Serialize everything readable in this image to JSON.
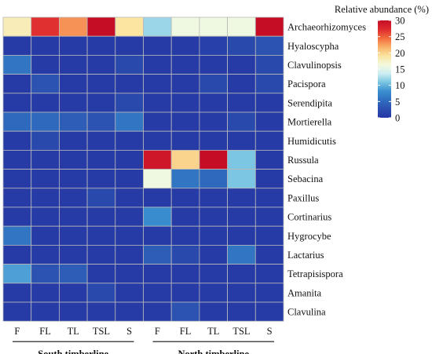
{
  "chart_data": {
    "type": "heatmap",
    "legend_title": "Relative abundance (%)",
    "colorbar": {
      "min": 0,
      "max": 30,
      "ticks": [
        0,
        5,
        10,
        15,
        20,
        25,
        30
      ],
      "colors": [
        "#2637a5",
        "#2c4fb0",
        "#2f6ec0",
        "#3a8fd0",
        "#79c5e2",
        "#cdeef2",
        "#f4f9de",
        "#fbe49e",
        "#f9b169",
        "#f26a3c",
        "#de2a2e",
        "#c50e26"
      ]
    },
    "columns": [
      "F",
      "FL",
      "TL",
      "TSL",
      "S",
      "F",
      "FL",
      "TL",
      "TSL",
      "S"
    ],
    "groups": [
      {
        "label": "South timberline",
        "span": [
          0,
          4
        ]
      },
      {
        "label": "North timberline",
        "span": [
          5,
          9
        ]
      }
    ],
    "rows": [
      "Archaeorhizomyces",
      "Hyaloscypha",
      "Clavulinopsis",
      "Pacispora",
      "Serendipita",
      "Mortierella",
      "Humidicutis",
      "Russula",
      "Sebacina",
      "Paxillus",
      "Cortinarius",
      "Hygrocybe",
      "Lactarius",
      "Tetrapisispora",
      "Amanita",
      "Clavulina"
    ],
    "values": [
      [
        18,
        27,
        23,
        30,
        19,
        12,
        16,
        16,
        16,
        30
      ],
      [
        0.5,
        0.5,
        0.5,
        0.5,
        0.5,
        0.5,
        0.5,
        1,
        2,
        3
      ],
      [
        6,
        0.5,
        0.5,
        0.5,
        2,
        0.5,
        0.5,
        0.5,
        0.5,
        2
      ],
      [
        0.5,
        3,
        0.5,
        0.5,
        0.5,
        0.5,
        0.5,
        2,
        0.5,
        2
      ],
      [
        0.5,
        0.5,
        0.5,
        0.5,
        2,
        0.5,
        0.5,
        0.5,
        0.5,
        0.5
      ],
      [
        5,
        5,
        4,
        3,
        6,
        0.5,
        0.5,
        0.5,
        2,
        0.5
      ],
      [
        0.5,
        2,
        0.5,
        0.5,
        0.5,
        0.5,
        0.5,
        0.5,
        0.5,
        0.5
      ],
      [
        0.5,
        0.5,
        0.5,
        0.5,
        0.5,
        29,
        20,
        30,
        11,
        0.5
      ],
      [
        0.5,
        0.5,
        0.5,
        0.5,
        0.5,
        16,
        6,
        5,
        11,
        0.5
      ],
      [
        0.5,
        0.5,
        0.5,
        2,
        0.5,
        0.5,
        0.5,
        0.5,
        0.5,
        0.5
      ],
      [
        0.5,
        0.5,
        0.5,
        0.5,
        0.5,
        8,
        0.5,
        0.5,
        0.5,
        0.5
      ],
      [
        6,
        0.5,
        0.5,
        0.5,
        0.5,
        0.5,
        0.5,
        0.5,
        0.5,
        0.5
      ],
      [
        0.5,
        0.5,
        0.5,
        0.5,
        0.5,
        4,
        2,
        0.5,
        6,
        0.5
      ],
      [
        9,
        3,
        4,
        0.5,
        0.5,
        0.5,
        0.5,
        0.5,
        0.5,
        0.5
      ],
      [
        0.5,
        0.5,
        0.5,
        2,
        0.5,
        0.5,
        0.5,
        0.5,
        0.5,
        0.5
      ],
      [
        0.5,
        0.5,
        0.5,
        0.5,
        0.5,
        0.5,
        3,
        0.5,
        0.5,
        0.5
      ]
    ]
  }
}
